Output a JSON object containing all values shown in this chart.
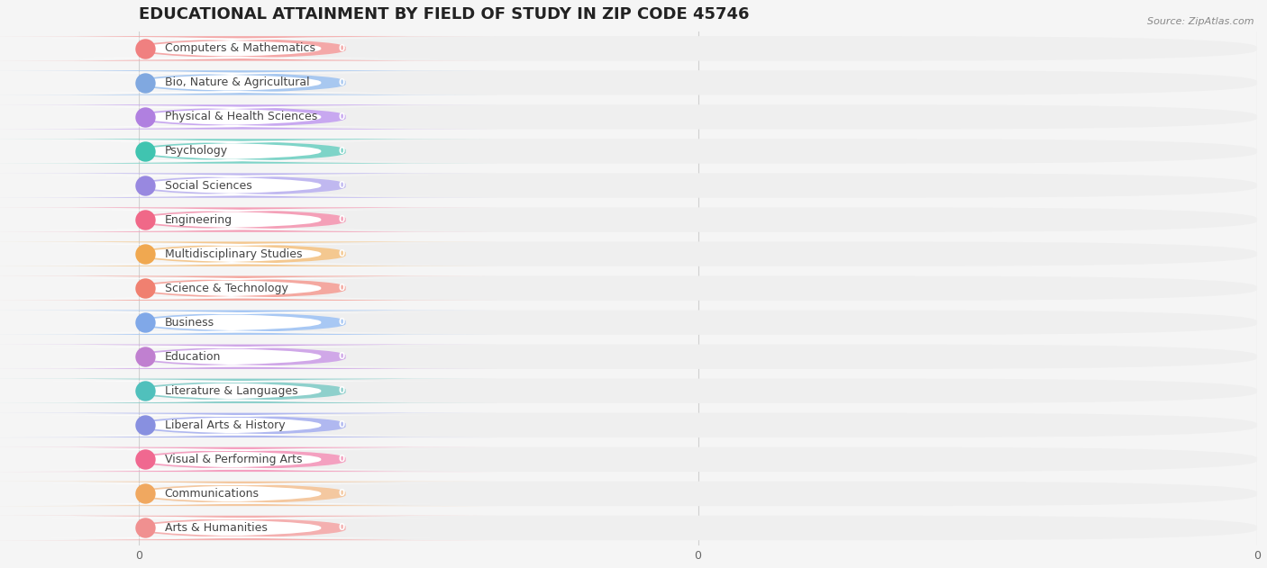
{
  "title": "EDUCATIONAL ATTAINMENT BY FIELD OF STUDY IN ZIP CODE 45746",
  "source": "Source: ZipAtlas.com",
  "categories": [
    "Computers & Mathematics",
    "Bio, Nature & Agricultural",
    "Physical & Health Sciences",
    "Psychology",
    "Social Sciences",
    "Engineering",
    "Multidisciplinary Studies",
    "Science & Technology",
    "Business",
    "Education",
    "Literature & Languages",
    "Liberal Arts & History",
    "Visual & Performing Arts",
    "Communications",
    "Arts & Humanities"
  ],
  "values": [
    0,
    0,
    0,
    0,
    0,
    0,
    0,
    0,
    0,
    0,
    0,
    0,
    0,
    0,
    0
  ],
  "bar_colors": [
    "#F4A8A8",
    "#A8C8F0",
    "#C8A8F0",
    "#7ED4C8",
    "#C0B8F0",
    "#F4A0B8",
    "#F4C890",
    "#F4A8A0",
    "#A8C8F4",
    "#D0A8E8",
    "#8ED0CC",
    "#B0B8F0",
    "#F4A0C0",
    "#F4C8A0",
    "#F4B0B0"
  ],
  "circle_colors": [
    "#F08080",
    "#80A8E0",
    "#B080E0",
    "#40C4B0",
    "#9888E0",
    "#F06888",
    "#F0A850",
    "#F08070",
    "#80A8E8",
    "#C080D0",
    "#50C0BC",
    "#8890E0",
    "#F06890",
    "#F0A860",
    "#F09090"
  ],
  "bg_color": "#f5f5f5",
  "row_bg_color": "#efefef",
  "label_bg_color": "#ffffff",
  "title_fontsize": 13,
  "label_fontsize": 9,
  "value_fontsize": 7.5,
  "xtick_positions": [
    0,
    0.5,
    1.0
  ],
  "xtick_labels": [
    "0",
    "0",
    "0"
  ],
  "grid_color": "#d0d0d0",
  "text_color": "#444444",
  "source_color": "#888888"
}
